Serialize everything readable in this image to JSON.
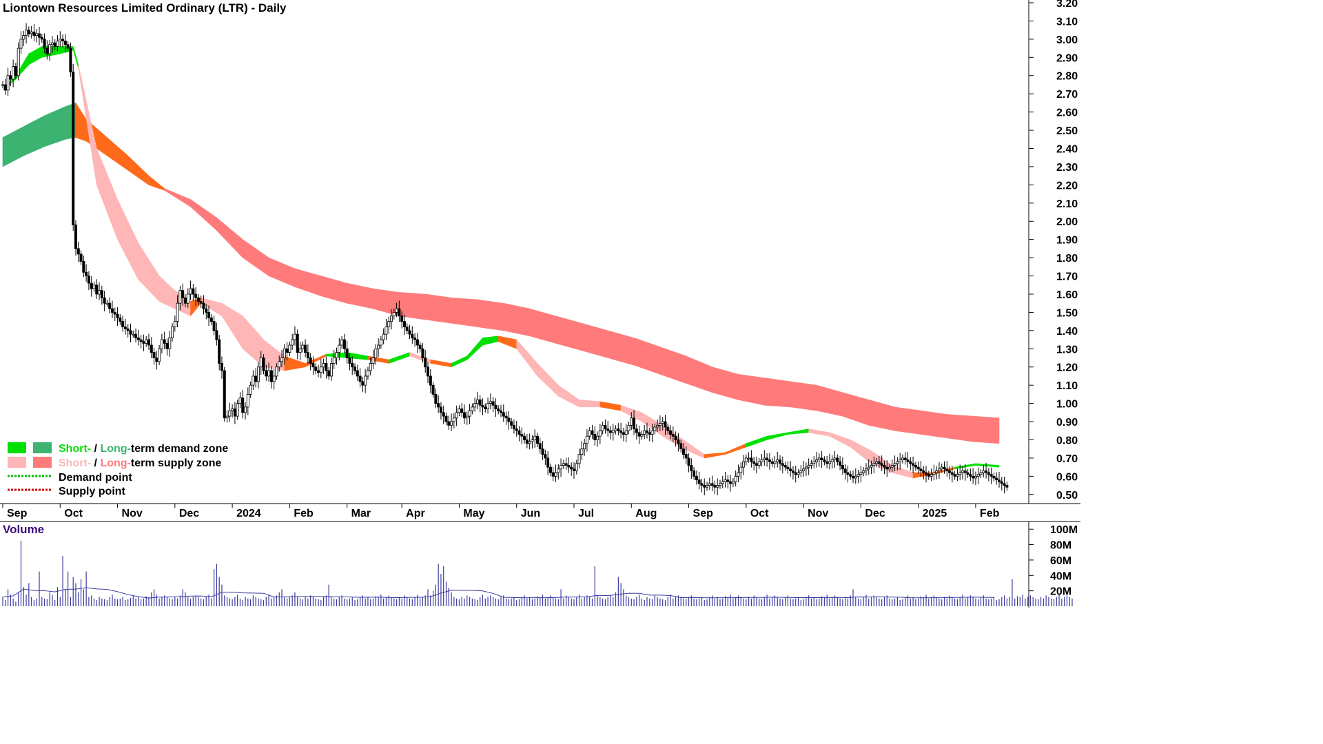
{
  "title": "Liontown Resources Limited Ordinary (LTR) - Daily",
  "colors": {
    "short_demand": "#00e000",
    "long_demand": "#3cb371",
    "short_supply": "#ffb6b6",
    "long_supply": "#ff7b7b",
    "transition": "#ff6a1a",
    "demand_point": "#00c000",
    "supply_point": "#d00000",
    "volume_bar": "#3a3aa0",
    "volume_avg": "#3a3aa0",
    "volume_title": "#3a0a7a"
  },
  "legend": {
    "zone_demand": {
      "short": "Short-",
      "sep": " / ",
      "long": "Long-",
      "rest": "term demand zone"
    },
    "zone_supply": {
      "short": "Short-",
      "sep": " / ",
      "long": "Long-",
      "rest": "term supply zone"
    },
    "demand_point": "Demand point",
    "supply_point": "Supply point"
  },
  "volume": {
    "title": "Volume",
    "tick_labels": [
      "100M",
      "80M",
      "60M",
      "40M",
      "20M"
    ]
  },
  "chart_data": {
    "type": "candlestick",
    "title": "Liontown Resources Limited Ordinary (LTR) - Daily",
    "price_axis": {
      "ylim": [
        0.45,
        3.2
      ],
      "ticks": [
        0.5,
        0.6,
        0.7,
        0.8,
        0.9,
        1.0,
        1.1,
        1.2,
        1.3,
        1.4,
        1.5,
        1.6,
        1.7,
        1.8,
        1.9,
        2.0,
        2.1,
        2.2,
        2.3,
        2.4,
        2.5,
        2.6,
        2.7,
        2.8,
        2.9,
        3.0,
        3.1,
        3.2
      ],
      "tick_labels": [
        "0.50",
        "0.60",
        "0.70",
        "0.80",
        "0.90",
        "1.00",
        "1.10",
        "1.20",
        "1.30",
        "1.40",
        "1.50",
        "1.60",
        "1.70",
        "1.80",
        "1.90",
        "2.00",
        "2.10",
        "2.20",
        "2.30",
        "2.40",
        "2.50",
        "2.60",
        "2.70",
        "2.80",
        "2.90",
        "3.00",
        "3.10",
        "3.20"
      ]
    },
    "months": [
      "Sep",
      "Oct",
      "Nov",
      "Dec",
      "2024",
      "Feb",
      "Mar",
      "Apr",
      "May",
      "Jun",
      "Jul",
      "Aug",
      "Sep",
      "Oct",
      "Nov",
      "Dec",
      "2025",
      "Feb"
    ],
    "month_index": [
      0,
      22,
      44,
      66,
      88,
      110,
      132,
      153,
      175,
      197,
      219,
      241,
      263,
      285,
      307,
      329,
      351,
      373
    ],
    "n_days": 383,
    "close": [
      2.75,
      2.72,
      2.8,
      2.78,
      2.85,
      2.8,
      2.95,
      3.0,
      3.02,
      3.05,
      3.03,
      3.04,
      3.02,
      3.03,
      3.01,
      3.0,
      2.95,
      2.92,
      2.97,
      2.98,
      2.96,
      2.99,
      3.0,
      2.99,
      2.97,
      2.95,
      2.82,
      1.98,
      1.85,
      1.82,
      1.78,
      1.72,
      1.7,
      1.66,
      1.63,
      1.65,
      1.6,
      1.62,
      1.58,
      1.55,
      1.55,
      1.52,
      1.5,
      1.49,
      1.47,
      1.45,
      1.42,
      1.41,
      1.4,
      1.38,
      1.38,
      1.36,
      1.35,
      1.34,
      1.33,
      1.35,
      1.32,
      1.28,
      1.25,
      1.23,
      1.3,
      1.35,
      1.33,
      1.3,
      1.36,
      1.42,
      1.45,
      1.55,
      1.62,
      1.58,
      1.55,
      1.6,
      1.63,
      1.6,
      1.58,
      1.56,
      1.55,
      1.52,
      1.5,
      1.47,
      1.45,
      1.4,
      1.35,
      1.22,
      1.18,
      0.92,
      0.93,
      0.96,
      0.97,
      0.93,
      1.0,
      1.03,
      0.95,
      0.98,
      1.05,
      1.1,
      1.15,
      1.12,
      1.2,
      1.25,
      1.18,
      1.15,
      1.18,
      1.12,
      1.15,
      1.2,
      1.23,
      1.25,
      1.3,
      1.28,
      1.32,
      1.35,
      1.38,
      1.28,
      1.3,
      1.32,
      1.28,
      1.25,
      1.22,
      1.2,
      1.18,
      1.17,
      1.2,
      1.22,
      1.18,
      1.15,
      1.22,
      1.25,
      1.28,
      1.32,
      1.35,
      1.3,
      1.25,
      1.22,
      1.2,
      1.18,
      1.15,
      1.12,
      1.1,
      1.15,
      1.18,
      1.22,
      1.25,
      1.3,
      1.32,
      1.35,
      1.38,
      1.42,
      1.45,
      1.48,
      1.5,
      1.52,
      1.48,
      1.45,
      1.42,
      1.4,
      1.38,
      1.36,
      1.35,
      1.32,
      1.3,
      1.25,
      1.2,
      1.15,
      1.1,
      1.05,
      1.0,
      0.98,
      0.95,
      0.93,
      0.9,
      0.88,
      0.9,
      0.92,
      0.95,
      0.97,
      0.95,
      0.92,
      0.93,
      0.96,
      0.98,
      1.0,
      1.02,
      0.99,
      0.98,
      0.97,
      1.0,
      1.01,
      0.99,
      0.97,
      0.96,
      0.95,
      0.93,
      0.92,
      0.9,
      0.88,
      0.86,
      0.85,
      0.83,
      0.82,
      0.8,
      0.78,
      0.79,
      0.8,
      0.82,
      0.78,
      0.75,
      0.72,
      0.7,
      0.65,
      0.62,
      0.6,
      0.62,
      0.64,
      0.66,
      0.67,
      0.66,
      0.65,
      0.64,
      0.63,
      0.67,
      0.72,
      0.75,
      0.78,
      0.82,
      0.85,
      0.83,
      0.8,
      0.82,
      0.85,
      0.88,
      0.86,
      0.85,
      0.84,
      0.85,
      0.86,
      0.85,
      0.84,
      0.83,
      0.85,
      0.88,
      0.92,
      0.86,
      0.84,
      0.82,
      0.83,
      0.85,
      0.84,
      0.83,
      0.85,
      0.87,
      0.88,
      0.89,
      0.9,
      0.87,
      0.85,
      0.83,
      0.82,
      0.8,
      0.78,
      0.75,
      0.72,
      0.7,
      0.66,
      0.63,
      0.6,
      0.58,
      0.56,
      0.55,
      0.54,
      0.55,
      0.56,
      0.55,
      0.54,
      0.55,
      0.56,
      0.57,
      0.58,
      0.57,
      0.56,
      0.57,
      0.6,
      0.62,
      0.65,
      0.68,
      0.7,
      0.7,
      0.68,
      0.67,
      0.66,
      0.68,
      0.69,
      0.7,
      0.69,
      0.68,
      0.67,
      0.68,
      0.69,
      0.67,
      0.66,
      0.65,
      0.64,
      0.63,
      0.62,
      0.61,
      0.62,
      0.63,
      0.64,
      0.65,
      0.66,
      0.67,
      0.68,
      0.69,
      0.7,
      0.69,
      0.68,
      0.67,
      0.68,
      0.69,
      0.7,
      0.68,
      0.66,
      0.64,
      0.62,
      0.61,
      0.6,
      0.59,
      0.6,
      0.61,
      0.62,
      0.63,
      0.64,
      0.65,
      0.66,
      0.67,
      0.68,
      0.67,
      0.66,
      0.65,
      0.64,
      0.65,
      0.66,
      0.67,
      0.68,
      0.69,
      0.7,
      0.69,
      0.68,
      0.67,
      0.66,
      0.65,
      0.64,
      0.63,
      0.62,
      0.61,
      0.6,
      0.61,
      0.62,
      0.63,
      0.64,
      0.65,
      0.64,
      0.63,
      0.62,
      0.61,
      0.6,
      0.61,
      0.62,
      0.63,
      0.62,
      0.61,
      0.6,
      0.59,
      0.6,
      0.61,
      0.62,
      0.63,
      0.62,
      0.61,
      0.6,
      0.59,
      0.58,
      0.57,
      0.56,
      0.55,
      0.54
    ],
    "short_zone": {
      "points": [
        [
          0,
          2.72,
          2.72
        ],
        [
          5,
          2.78,
          2.8
        ],
        [
          10,
          2.86,
          2.92
        ],
        [
          15,
          2.9,
          2.96
        ],
        [
          22,
          2.92,
          2.96
        ],
        [
          27,
          2.94,
          2.96
        ],
        [
          29,
          2.84,
          2.86
        ],
        [
          36,
          2.2,
          2.4
        ],
        [
          44,
          1.9,
          2.12
        ],
        [
          52,
          1.68,
          1.88
        ],
        [
          60,
          1.56,
          1.7
        ],
        [
          66,
          1.52,
          1.62
        ],
        [
          72,
          1.48,
          1.56
        ],
        [
          76,
          1.55,
          1.58
        ],
        [
          84,
          1.48,
          1.55
        ],
        [
          92,
          1.3,
          1.48
        ],
        [
          100,
          1.2,
          1.35
        ],
        [
          108,
          1.18,
          1.26
        ],
        [
          116,
          1.2,
          1.22
        ],
        [
          124,
          1.26,
          1.27
        ],
        [
          132,
          1.25,
          1.28
        ],
        [
          140,
          1.24,
          1.26
        ],
        [
          148,
          1.22,
          1.24
        ],
        [
          156,
          1.26,
          1.28
        ],
        [
          164,
          1.22,
          1.24
        ],
        [
          172,
          1.2,
          1.22
        ],
        [
          178,
          1.24,
          1.26
        ],
        [
          184,
          1.32,
          1.36
        ],
        [
          190,
          1.34,
          1.37
        ],
        [
          197,
          1.3,
          1.35
        ],
        [
          205,
          1.15,
          1.22
        ],
        [
          213,
          1.04,
          1.1
        ],
        [
          221,
          0.98,
          1.02
        ],
        [
          229,
          0.98,
          1.01
        ],
        [
          237,
          0.96,
          0.99
        ],
        [
          245,
          0.9,
          0.95
        ],
        [
          253,
          0.82,
          0.88
        ],
        [
          261,
          0.75,
          0.8
        ],
        [
          269,
          0.7,
          0.72
        ],
        [
          277,
          0.72,
          0.73
        ],
        [
          285,
          0.76,
          0.78
        ],
        [
          293,
          0.8,
          0.82
        ],
        [
          301,
          0.83,
          0.84
        ],
        [
          309,
          0.84,
          0.86
        ],
        [
          317,
          0.82,
          0.84
        ],
        [
          325,
          0.76,
          0.8
        ],
        [
          333,
          0.67,
          0.74
        ],
        [
          341,
          0.62,
          0.66
        ],
        [
          349,
          0.59,
          0.62
        ],
        [
          357,
          0.61,
          0.62
        ],
        [
          365,
          0.64,
          0.65
        ],
        [
          373,
          0.66,
          0.67
        ],
        [
          382,
          0.65,
          0.66
        ]
      ],
      "state": [
        "demand",
        "demand",
        "demand",
        "demand",
        "demand",
        "demand",
        "supply",
        "supply",
        "supply",
        "supply",
        "supply",
        "supply",
        "transition",
        "supply",
        "supply",
        "supply",
        "supply",
        "transition",
        "transition",
        "demand",
        "demand",
        "transition",
        "demand",
        "supply",
        "transition",
        "demand",
        "demand",
        "demand",
        "transition",
        "supply",
        "supply",
        "supply",
        "supply",
        "transition",
        "supply",
        "supply",
        "supply",
        "supply",
        "transition",
        "transition",
        "demand",
        "demand",
        "demand",
        "supply",
        "supply",
        "supply",
        "supply",
        "supply",
        "transition",
        "transition",
        "demand",
        "demand"
      ]
    },
    "long_zone": {
      "points": [
        [
          0,
          2.46,
          2.3
        ],
        [
          8,
          2.52,
          2.36
        ],
        [
          16,
          2.58,
          2.41
        ],
        [
          24,
          2.63,
          2.45
        ],
        [
          28,
          2.65,
          2.46
        ],
        [
          32,
          2.56,
          2.44
        ],
        [
          40,
          2.46,
          2.36
        ],
        [
          48,
          2.36,
          2.28
        ],
        [
          56,
          2.25,
          2.2
        ],
        [
          62,
          2.18,
          2.17
        ],
        [
          72,
          2.12,
          2.08
        ],
        [
          82,
          2.02,
          1.95
        ],
        [
          92,
          1.9,
          1.8
        ],
        [
          102,
          1.8,
          1.7
        ],
        [
          112,
          1.74,
          1.64
        ],
        [
          122,
          1.7,
          1.59
        ],
        [
          132,
          1.66,
          1.55
        ],
        [
          142,
          1.63,
          1.52
        ],
        [
          152,
          1.61,
          1.48
        ],
        [
          162,
          1.6,
          1.46
        ],
        [
          172,
          1.58,
          1.44
        ],
        [
          182,
          1.57,
          1.42
        ],
        [
          192,
          1.55,
          1.4
        ],
        [
          202,
          1.52,
          1.37
        ],
        [
          212,
          1.48,
          1.33
        ],
        [
          222,
          1.44,
          1.29
        ],
        [
          232,
          1.4,
          1.25
        ],
        [
          242,
          1.36,
          1.21
        ],
        [
          252,
          1.31,
          1.16
        ],
        [
          262,
          1.26,
          1.11
        ],
        [
          272,
          1.2,
          1.06
        ],
        [
          282,
          1.16,
          1.02
        ],
        [
          292,
          1.14,
          0.99
        ],
        [
          302,
          1.12,
          0.98
        ],
        [
          312,
          1.1,
          0.96
        ],
        [
          322,
          1.06,
          0.93
        ],
        [
          332,
          1.02,
          0.88
        ],
        [
          342,
          0.98,
          0.85
        ],
        [
          352,
          0.96,
          0.83
        ],
        [
          362,
          0.94,
          0.81
        ],
        [
          372,
          0.93,
          0.79
        ],
        [
          382,
          0.92,
          0.78
        ]
      ]
    },
    "volume_axis": {
      "ylim": [
        0,
        110
      ],
      "unit": "M"
    },
    "volume": [
      12,
      8,
      22,
      15,
      10,
      6,
      18,
      85,
      25,
      15,
      30,
      12,
      8,
      10,
      45,
      12,
      10,
      9,
      18,
      15,
      8,
      25,
      12,
      65,
      22,
      45,
      12,
      38,
      30,
      18,
      35,
      22,
      45,
      12,
      14,
      10,
      8,
      12,
      10,
      9,
      8,
      12,
      15,
      10,
      9,
      10,
      12,
      8,
      9,
      11,
      14,
      10,
      12,
      9,
      10,
      13,
      12,
      18,
      22,
      15,
      10,
      12,
      14,
      12,
      10,
      9,
      12,
      10,
      14,
      22,
      18,
      12,
      10,
      12,
      14,
      12,
      10,
      9,
      12,
      15,
      10,
      48,
      55,
      38,
      28,
      14,
      12,
      10,
      9,
      12,
      15,
      10,
      8,
      12,
      10,
      9,
      14,
      12,
      10,
      9,
      8,
      12,
      15,
      10,
      12,
      14,
      18,
      22,
      12,
      10,
      12,
      14,
      18,
      12,
      10,
      9,
      12,
      10,
      14,
      12,
      10,
      9,
      8,
      12,
      14,
      28,
      12,
      10,
      9,
      12,
      14,
      10,
      9,
      10,
      12,
      8,
      9,
      12,
      14,
      10,
      12,
      9,
      10,
      13,
      12,
      15,
      10,
      12,
      14,
      12,
      10,
      9,
      12,
      10,
      14,
      12,
      10,
      9,
      12,
      15,
      10,
      12,
      14,
      22,
      14,
      20,
      28,
      55,
      42,
      52,
      32,
      24,
      18,
      12,
      10,
      9,
      12,
      10,
      14,
      12,
      10,
      9,
      8,
      12,
      15,
      10,
      12,
      14,
      12,
      10,
      9,
      12,
      14,
      10,
      9,
      10,
      12,
      8,
      9,
      12,
      14,
      10,
      12,
      9,
      10,
      13,
      12,
      15,
      10,
      12,
      14,
      12,
      10,
      9,
      22,
      10,
      14,
      12,
      10,
      9,
      12,
      15,
      10,
      12,
      14,
      12,
      10,
      52,
      14,
      12,
      10,
      9,
      12,
      14,
      12,
      18,
      38,
      30,
      22,
      14,
      12,
      10,
      9,
      12,
      15,
      10,
      8,
      12,
      10,
      9,
      14,
      12,
      10,
      9,
      8,
      12,
      15,
      10,
      12,
      14,
      12,
      10,
      9,
      12,
      14,
      10,
      9,
      10,
      12,
      8,
      9,
      12,
      14,
      10,
      12,
      9,
      10,
      13,
      12,
      15,
      10,
      12,
      14,
      12,
      10,
      9,
      12,
      10,
      14,
      12,
      10,
      9,
      12,
      15,
      10,
      12,
      14,
      12,
      10,
      9,
      12,
      14,
      10,
      9,
      10,
      12,
      8,
      9,
      12,
      14,
      10,
      12,
      9,
      10,
      13,
      12,
      15,
      10,
      12,
      14,
      12,
      10,
      9,
      12,
      10,
      14,
      22,
      12,
      10,
      9,
      12,
      15,
      10,
      12,
      14,
      12,
      10,
      9,
      12,
      14,
      10,
      9,
      10,
      12,
      8,
      9,
      12,
      14,
      10,
      12,
      9,
      10,
      13,
      12,
      15,
      10,
      12,
      14,
      12,
      10,
      9,
      12,
      10,
      14,
      12,
      10,
      9,
      12,
      15,
      10,
      12,
      14,
      12,
      10,
      9,
      12,
      14,
      10,
      9,
      10,
      12,
      8,
      9,
      12,
      14,
      10,
      12,
      35,
      10,
      13,
      12,
      15,
      10,
      12,
      14,
      12,
      10,
      9,
      12,
      10,
      14,
      12,
      10,
      9,
      12,
      15,
      10,
      12,
      14,
      12,
      10
    ],
    "volume_avg": 15
  }
}
